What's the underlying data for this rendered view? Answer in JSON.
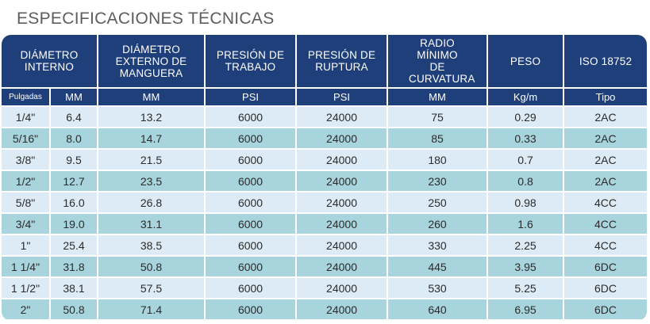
{
  "title": "ESPECIFICACIONES TÉCNICAS",
  "headers": {
    "diametro_interno": "DIÁMETRO INTERNO",
    "diametro_externo": "DIÁMETRO EXTERNO DE MANGUERA",
    "presion_trabajo": "PRESIÓN DE TRABAJO",
    "presion_ruptura": "PRESIÓN DE RUPTURA",
    "radio": "RADIO MÍNIMO DE CURVATURA",
    "peso": "PESO",
    "iso": "ISO 18752"
  },
  "units": {
    "pulgadas": "Pulgadas",
    "mm_int": "MM",
    "mm_ext": "MM",
    "psi_trabajo": "PSI",
    "psi_ruptura": "PSI",
    "mm_radio": "MM",
    "kg_m": "Kg/m",
    "tipo": "Tipo"
  },
  "rows": [
    [
      "1/4\"",
      "6.4",
      "13.2",
      "6000",
      "24000",
      "75",
      "0.29",
      "2AC"
    ],
    [
      "5/16\"",
      "8.0",
      "14.7",
      "6000",
      "24000",
      "85",
      "0.33",
      "2AC"
    ],
    [
      "3/8\"",
      "9.5",
      "21.5",
      "6000",
      "24000",
      "180",
      "0.7",
      "2AC"
    ],
    [
      "1/2\"",
      "12.7",
      "23.5",
      "6000",
      "24000",
      "230",
      "0.8",
      "2AC"
    ],
    [
      "5/8\"",
      "16.0",
      "26.8",
      "6000",
      "24000",
      "250",
      "0.98",
      "4CC"
    ],
    [
      "3/4\"",
      "19.0",
      "31.1",
      "6000",
      "24000",
      "260",
      "1.6",
      "4CC"
    ],
    [
      "1\"",
      "25.4",
      "38.5",
      "6000",
      "24000",
      "330",
      "2.25",
      "4CC"
    ],
    [
      "1 1/4\"",
      "31.8",
      "50.8",
      "6000",
      "24000",
      "445",
      "3.95",
      "6DC"
    ],
    [
      "1 1/2\"",
      "38.1",
      "57.5",
      "6000",
      "24000",
      "530",
      "5.25",
      "6DC"
    ],
    [
      "2\"",
      "50.8",
      "71.4",
      "6000",
      "24000",
      "640",
      "6.95",
      "6DC"
    ]
  ]
}
